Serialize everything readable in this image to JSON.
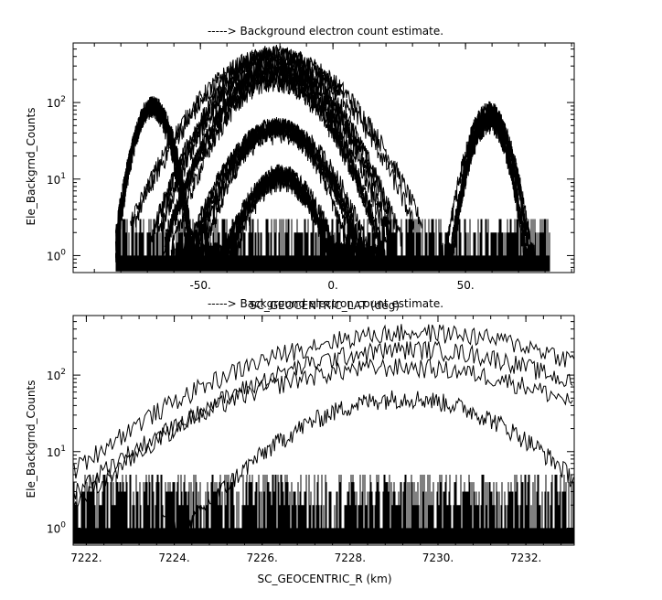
{
  "chart_data": [
    {
      "type": "line",
      "title": "-----> Background electron count estimate.",
      "xlabel": "SC_GEOCENTRIC_LAT (deg)",
      "ylabel": "Ele_Backgrnd_Counts",
      "xlim": [
        -98,
        91
      ],
      "ylim": [
        0.6,
        600
      ],
      "yscale": "log",
      "x_ticks": [
        -50,
        0,
        50
      ],
      "x_tick_labels": [
        "-50.",
        "0.",
        "50."
      ],
      "y_ticks": [
        1,
        10,
        100
      ],
      "data_range_x": [
        -82,
        82
      ],
      "noise_floor_max": 3,
      "series": [
        {
          "center": -22,
          "width": 15,
          "peak": 330,
          "count": 6
        },
        {
          "center": -22,
          "width": 12,
          "peak": 200,
          "count": 5
        },
        {
          "center": -21,
          "width": 11,
          "peak": 40,
          "count": 6
        },
        {
          "center": -20,
          "width": 9,
          "peak": 10,
          "count": 5
        },
        {
          "center": -68,
          "width": 5,
          "peak": 85,
          "count": 5
        },
        {
          "center": 59,
          "width": 5,
          "peak": 60,
          "count": 6
        }
      ]
    },
    {
      "type": "line",
      "title": "-----> Background electron count estimate.",
      "xlabel": "SC_GEOCENTRIC_R (km)",
      "ylabel": "Ele_Backgrnd_Counts",
      "xlim": [
        7221.7,
        7233.1
      ],
      "ylim": [
        0.6,
        600
      ],
      "yscale": "log",
      "x_ticks": [
        7222,
        7224,
        7226,
        7228,
        7230,
        7232
      ],
      "x_tick_labels": [
        "7222.",
        "7224.",
        "7226.",
        "7228.",
        "7230.",
        "7232."
      ],
      "y_ticks": [
        1,
        10,
        100
      ],
      "data_range_x": [
        7221.7,
        7233.1
      ],
      "noise_floor_max": 5,
      "series": [
        {
          "center": 7229.6,
          "width": 2.6,
          "peak": 310,
          "count": 1
        },
        {
          "center": 7229.4,
          "width": 2.7,
          "peak": 190,
          "count": 1
        },
        {
          "center": 7229.0,
          "width": 2.5,
          "peak": 140,
          "count": 1
        },
        {
          "center": 7229.1,
          "width": 1.6,
          "peak": 40,
          "count": 1
        }
      ]
    }
  ]
}
